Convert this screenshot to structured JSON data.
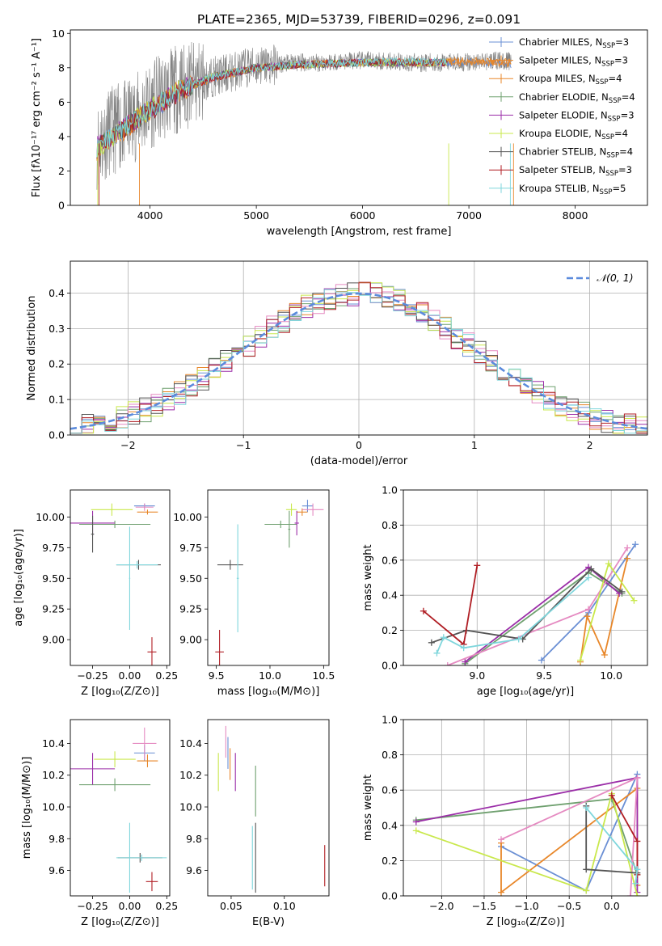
{
  "palette": [
    "#6a8fd4",
    "#e8872a",
    "#6fa06f",
    "#9b2ea8",
    "#e58ac1",
    "#c9e84c",
    "#555555",
    "#b01e24",
    "#7fd6dc"
  ],
  "figure": {
    "title": "PLATE=2365, MJD=53739, FIBERID=0296, z=0.091"
  },
  "chart_data": [
    {
      "id": "spectrum",
      "type": "line",
      "xlabel": "wavelength [Angstrom, rest frame]",
      "ylabel": "Flux [fλ10⁻¹⁷ erg cm⁻² s⁻¹ A⁻¹]",
      "xlim": [
        3250,
        8680
      ],
      "ylim": [
        0,
        10.2
      ],
      "xticks": [
        4000,
        5000,
        6000,
        7000,
        8000
      ],
      "yticks": [
        0,
        2,
        4,
        6,
        8,
        10
      ],
      "legend": "top-right",
      "observed": {
        "color": "#808080",
        "x": [
          3500,
          3600,
          3700,
          3800,
          3900,
          4000,
          4100,
          4200,
          4300,
          4400,
          4500,
          4600,
          4700,
          4800,
          4900,
          5000,
          5200,
          5400,
          5600,
          5800,
          6000,
          6200,
          6400,
          6600,
          6800,
          7000,
          7200,
          7400
        ],
        "y": [
          3.5,
          4.2,
          4.5,
          4.8,
          5.3,
          5.8,
          6.2,
          6.6,
          6.9,
          7.0,
          7.2,
          7.5,
          7.6,
          7.8,
          8.0,
          8.1,
          8.2,
          8.3,
          8.3,
          8.4,
          8.4,
          8.4,
          8.3,
          8.3,
          8.3,
          8.3,
          8.4,
          8.4
        ]
      },
      "series": [
        {
          "name": "Chabrier MILES, N_SSP=3",
          "colorIndex": 0,
          "x": [
            3500,
            3700,
            4000,
            4300,
            4600,
            5000,
            5500,
            6000,
            6500,
            7000,
            7400
          ],
          "y": [
            3.3,
            4.2,
            5.5,
            6.7,
            7.4,
            8.0,
            8.2,
            8.3,
            8.3,
            8.3,
            8.2
          ]
        },
        {
          "name": "Salpeter MILES, N_SSP=3",
          "colorIndex": 1,
          "x": [
            3500,
            3700,
            4000,
            4300,
            4600,
            5000,
            5500,
            6000,
            6500,
            7000,
            7400
          ],
          "y": [
            3.3,
            4.2,
            5.6,
            6.8,
            7.5,
            8.0,
            8.2,
            8.3,
            8.3,
            8.4,
            8.3
          ]
        },
        {
          "name": "Kroupa MILES, N_SSP=4",
          "colorIndex": 1,
          "x": [
            3500,
            3700,
            4000,
            4300,
            4600,
            5000,
            5500,
            6000,
            6500,
            7000,
            7400
          ],
          "y": [
            3.2,
            4.1,
            5.5,
            6.7,
            7.4,
            8.0,
            8.2,
            8.3,
            8.3,
            8.3,
            8.2
          ]
        },
        {
          "name": "Chabrier ELODIE, N_SSP=4",
          "colorIndex": 2,
          "x": [
            3500,
            3700,
            4000,
            4300,
            4600,
            5000,
            5500,
            6000,
            6500,
            6800
          ],
          "y": [
            3.4,
            4.3,
            5.6,
            6.8,
            7.5,
            8.0,
            8.2,
            8.3,
            8.3,
            8.3
          ]
        },
        {
          "name": "Salpeter ELODIE, N_SSP=3",
          "colorIndex": 3,
          "x": [
            3500,
            3700,
            4000,
            4300,
            4600,
            5000,
            5500,
            6000,
            6500,
            6800
          ],
          "y": [
            3.4,
            4.3,
            5.6,
            6.8,
            7.5,
            8.0,
            8.2,
            8.3,
            8.3,
            8.3
          ]
        },
        {
          "name": "Kroupa ELODIE, N_SSP=4",
          "colorIndex": 5,
          "x": [
            3500,
            3700,
            4000,
            4300,
            4600,
            5000,
            5500,
            6000,
            6500,
            6800
          ],
          "y": [
            3.3,
            4.2,
            5.6,
            6.8,
            7.5,
            8.0,
            8.2,
            8.3,
            8.3,
            8.3
          ]
        },
        {
          "name": "Chabrier STELIB, N_SSP=4",
          "colorIndex": 6,
          "x": [
            3500,
            3700,
            4000,
            4300,
            4600,
            5000,
            5500,
            6000,
            6500,
            6800
          ],
          "y": [
            3.3,
            4.3,
            5.5,
            6.7,
            7.5,
            8.0,
            8.2,
            8.3,
            8.3,
            8.3
          ]
        },
        {
          "name": "Salpeter STELIB, N_SSP=3",
          "colorIndex": 7,
          "x": [
            3500,
            3700,
            4000,
            4300,
            4600,
            5000,
            5500,
            6000,
            6500,
            6800
          ],
          "y": [
            3.3,
            4.2,
            5.5,
            6.7,
            7.4,
            8.0,
            8.2,
            8.3,
            8.3,
            8.3
          ]
        },
        {
          "name": "Kroupa STELIB, N_SSP=5",
          "colorIndex": 8,
          "x": [
            3500,
            3700,
            4000,
            4300,
            4600,
            5000,
            5500,
            6000,
            6500,
            6800
          ],
          "y": [
            3.4,
            4.3,
            5.6,
            6.8,
            7.5,
            8.0,
            8.2,
            8.3,
            8.4,
            8.3
          ]
        }
      ],
      "legend_labels": [
        "Chabrier MILES, N",
        "Salpeter MILES, N",
        "Kroupa MILES, N",
        "Chabrier ELODIE, N",
        "Salpeter ELODIE, N",
        "Kroupa ELODIE, N",
        "Chabrier STELIB, N",
        "Salpeter STELIB, N",
        "Kroupa STELIB, N"
      ],
      "legend_sub": "SSP",
      "legend_counts": [
        "=3",
        "=3",
        "=4",
        "=4",
        "=3",
        "=4",
        "=4",
        "=3",
        "=5"
      ],
      "legend_colorIndex": [
        0,
        1,
        1,
        2,
        3,
        5,
        6,
        7,
        8
      ]
    },
    {
      "id": "residuals",
      "type": "line",
      "xlabel": "(data-model)/error",
      "ylabel": "Normed distribution",
      "xlim": [
        -2.5,
        2.5
      ],
      "ylim": [
        0,
        0.49
      ],
      "xticks": [
        -2,
        -1,
        0,
        1,
        2
      ],
      "yticks": [
        0.0,
        0.1,
        0.2,
        0.3,
        0.4
      ],
      "grid": true,
      "legend": "top-right",
      "reference": {
        "name": "𝒩(0, 1)",
        "color": "#5b8bdc",
        "mean": 0,
        "sigma": 1
      }
    },
    {
      "id": "age-vs-Z",
      "type": "scatter",
      "xlabel": "Z [log₁₀(Z/Z⊙)]",
      "ylabel": "age  [log₁₀(age/yr)]",
      "xlim": [
        -0.4,
        0.27
      ],
      "ylim": [
        8.79,
        10.22
      ],
      "xticks": [
        -0.25,
        0.0,
        0.25
      ],
      "yticks": [
        9.0,
        9.25,
        9.5,
        9.75,
        10.0
      ],
      "points": [
        {
          "x": 0.1,
          "y": 10.09,
          "ex": 0.07,
          "ey": 0.02,
          "c": 0
        },
        {
          "x": 0.12,
          "y": 10.04,
          "ex": 0.07,
          "ey": 0.02,
          "c": 1
        },
        {
          "x": -0.1,
          "y": 9.94,
          "ex": 0.24,
          "ey": 0.03,
          "c": 2
        },
        {
          "x": -0.25,
          "y": 9.95,
          "ex": 0.15,
          "ey": 0.1,
          "c": 3
        },
        {
          "x": 0.1,
          "y": 10.08,
          "ex": 0.06,
          "ey": 0.03,
          "c": 4
        },
        {
          "x": -0.12,
          "y": 10.06,
          "ex": 0.14,
          "ey": 0.05,
          "c": 5
        },
        {
          "x": 0.06,
          "y": 9.61,
          "ex": 0.15,
          "ey": 0.04,
          "c": 6
        },
        {
          "x": 0.15,
          "y": 8.9,
          "ex": 0.03,
          "ey": 0.12,
          "c": 7
        },
        {
          "x": 0.05,
          "y": 9.61,
          "ex": 0.14,
          "ey": 0.03,
          "c": 8
        },
        {
          "x": 0.0,
          "y": 9.5,
          "ex": 0.004,
          "ey": 0.42,
          "c": 8
        },
        {
          "x": -0.25,
          "y": 9.86,
          "ex": 0.01,
          "ey": 0.15,
          "c": 6
        }
      ]
    },
    {
      "id": "age-vs-mass",
      "type": "scatter",
      "xlabel": "mass [log₁₀(M/M⊙)]",
      "ylabel": "",
      "xlim": [
        9.42,
        10.55
      ],
      "ylim": [
        8.79,
        10.22
      ],
      "xticks": [
        9.5,
        10.0,
        10.5
      ],
      "yticks": [
        9.0,
        9.25,
        9.5,
        9.75,
        10.0
      ],
      "points": [
        {
          "x": 10.35,
          "y": 10.09,
          "ex": 0.05,
          "ey": 0.05,
          "c": 0
        },
        {
          "x": 10.3,
          "y": 10.04,
          "ex": 0.05,
          "ey": 0.03,
          "c": 1
        },
        {
          "x": 10.1,
          "y": 9.94,
          "ex": 0.15,
          "ey": 0.03,
          "c": 2
        },
        {
          "x": 10.25,
          "y": 9.95,
          "ex": 0.02,
          "ey": 0.1,
          "c": 3
        },
        {
          "x": 10.4,
          "y": 10.06,
          "ex": 0.1,
          "ey": 0.05,
          "c": 4
        },
        {
          "x": 10.2,
          "y": 10.06,
          "ex": 0.05,
          "ey": 0.05,
          "c": 5
        },
        {
          "x": 9.63,
          "y": 9.61,
          "ex": 0.12,
          "ey": 0.04,
          "c": 6
        },
        {
          "x": 9.53,
          "y": 8.9,
          "ex": 0.04,
          "ey": 0.18,
          "c": 7
        },
        {
          "x": 9.7,
          "y": 9.5,
          "ex": 0.01,
          "ey": 0.44,
          "c": 8
        },
        {
          "x": 10.18,
          "y": 9.9,
          "ex": 0.01,
          "ey": 0.15,
          "c": 2
        }
      ]
    },
    {
      "id": "weight-vs-age",
      "type": "line",
      "xlabel": "age  [log₁₀(age/yr)]",
      "ylabel": "mass weight",
      "xlim": [
        8.45,
        10.27
      ],
      "ylim": [
        0,
        1.0
      ],
      "xticks": [
        9.0,
        9.5,
        10.0
      ],
      "yticks": [
        0.0,
        0.2,
        0.4,
        0.6,
        0.8,
        1.0
      ],
      "grid": true,
      "series": [
        {
          "c": 0,
          "x": [
            9.48,
            9.83,
            10.18
          ],
          "y": [
            0.03,
            0.3,
            0.69
          ]
        },
        {
          "c": 1,
          "x": [
            9.77,
            9.82,
            9.95,
            10.12
          ],
          "y": [
            0.02,
            0.28,
            0.06,
            0.61
          ]
        },
        {
          "c": 2,
          "x": [
            8.91,
            9.83,
            10.08
          ],
          "y": [
            0.01,
            0.53,
            0.41
          ]
        },
        {
          "c": 3,
          "x": [
            8.91,
            9.83,
            10.06
          ],
          "y": [
            0.02,
            0.56,
            0.41
          ]
        },
        {
          "c": 4,
          "x": [
            8.78,
            9.83,
            10.12
          ],
          "y": [
            0.0,
            0.32,
            0.67
          ]
        },
        {
          "c": 5,
          "x": [
            9.77,
            9.98,
            10.17
          ],
          "y": [
            0.03,
            0.58,
            0.37
          ]
        },
        {
          "c": 6,
          "x": [
            8.66,
            8.92,
            9.34,
            9.85,
            10.08
          ],
          "y": [
            0.13,
            0.2,
            0.15,
            0.55,
            0.42
          ]
        },
        {
          "c": 7,
          "x": [
            8.6,
            8.9,
            9.0
          ],
          "y": [
            0.31,
            0.12,
            0.57
          ]
        },
        {
          "c": 8,
          "x": [
            8.7,
            8.75,
            8.9,
            9.31,
            9.83
          ],
          "y": [
            0.07,
            0.16,
            0.1,
            0.15,
            0.5
          ]
        }
      ]
    },
    {
      "id": "mass-vs-Z",
      "type": "scatter",
      "xlabel": "Z [log₁₀(Z/Z⊙)]",
      "ylabel": "mass [log₁₀(M/M⊙)]",
      "xlim": [
        -0.4,
        0.27
      ],
      "ylim": [
        9.44,
        10.55
      ],
      "xticks": [
        -0.25,
        0.0,
        0.25
      ],
      "yticks": [
        9.6,
        9.8,
        10.0,
        10.2,
        10.4
      ],
      "points": [
        {
          "x": 0.1,
          "y": 10.34,
          "ex": 0.07,
          "ey": 0.05,
          "c": 0
        },
        {
          "x": 0.12,
          "y": 10.29,
          "ex": 0.07,
          "ey": 0.04,
          "c": 1
        },
        {
          "x": -0.1,
          "y": 10.14,
          "ex": 0.24,
          "ey": 0.04,
          "c": 2
        },
        {
          "x": -0.25,
          "y": 10.24,
          "ex": 0.15,
          "ey": 0.1,
          "c": 3
        },
        {
          "x": 0.1,
          "y": 10.4,
          "ex": 0.08,
          "ey": 0.1,
          "c": 4
        },
        {
          "x": -0.1,
          "y": 10.3,
          "ex": 0.14,
          "ey": 0.05,
          "c": 5
        },
        {
          "x": 0.07,
          "y": 9.68,
          "ex": 0.15,
          "ey": 0.03,
          "c": 6
        },
        {
          "x": 0.15,
          "y": 9.53,
          "ex": 0.04,
          "ey": 0.06,
          "c": 7
        },
        {
          "x": 0.08,
          "y": 9.68,
          "ex": 0.17,
          "ey": 0.02,
          "c": 8
        },
        {
          "x": 0.0,
          "y": 9.68,
          "ex": 0.004,
          "ey": 0.22,
          "c": 8
        }
      ]
    },
    {
      "id": "mass-vs-ebv",
      "type": "scatter",
      "xlabel": "E(B-V)",
      "ylabel": "",
      "xlim": [
        0.028,
        0.142
      ],
      "ylim": [
        9.44,
        10.55
      ],
      "xticks": [
        0.05,
        0.1
      ],
      "yticks": [
        9.6,
        9.8,
        10.0,
        10.2,
        10.4
      ],
      "points": [
        {
          "x": 0.047,
          "y": 10.34,
          "ey": 0.1,
          "c": 0
        },
        {
          "x": 0.049,
          "y": 10.27,
          "ey": 0.1,
          "c": 1
        },
        {
          "x": 0.073,
          "y": 10.1,
          "ey": 0.16,
          "c": 2
        },
        {
          "x": 0.054,
          "y": 10.22,
          "ey": 0.12,
          "c": 3
        },
        {
          "x": 0.045,
          "y": 10.41,
          "ey": 0.1,
          "c": 4
        },
        {
          "x": 0.038,
          "y": 10.22,
          "ey": 0.12,
          "c": 5
        },
        {
          "x": 0.073,
          "y": 9.68,
          "ey": 0.22,
          "c": 6
        },
        {
          "x": 0.138,
          "y": 9.63,
          "ey": 0.13,
          "c": 7
        },
        {
          "x": 0.07,
          "y": 9.68,
          "ey": 0.2,
          "c": 8
        }
      ]
    },
    {
      "id": "weight-vs-Z",
      "type": "line",
      "xlabel": "Z [log₁₀(Z/Z⊙)]",
      "ylabel": "mass weight",
      "xlim": [
        -2.45,
        0.42
      ],
      "ylim": [
        0,
        1.0
      ],
      "xticks": [
        -2.0,
        -1.5,
        -1.0,
        -0.5,
        0.0
      ],
      "yticks": [
        0.0,
        0.2,
        0.4,
        0.6,
        0.8,
        1.0
      ],
      "grid": true,
      "series": [
        {
          "c": 0,
          "x": [
            -1.3,
            -0.3,
            0.3
          ],
          "y": [
            0.28,
            0.03,
            0.69
          ]
        },
        {
          "c": 1,
          "x": [
            -1.3,
            -1.3,
            0.3,
            0.3
          ],
          "y": [
            0.3,
            0.02,
            0.61,
            0.06
          ]
        },
        {
          "c": 2,
          "x": [
            -2.3,
            0.0,
            0.3
          ],
          "y": [
            0.43,
            0.55,
            0.12
          ]
        },
        {
          "c": 3,
          "x": [
            -2.3,
            0.3,
            0.3
          ],
          "y": [
            0.42,
            0.67,
            0.02
          ]
        },
        {
          "c": 4,
          "x": [
            -1.3,
            0.3,
            0.22
          ],
          "y": [
            0.32,
            0.67,
            0.0
          ]
        },
        {
          "c": 5,
          "x": [
            -2.3,
            -0.3,
            0.0,
            0.3
          ],
          "y": [
            0.37,
            0.03,
            0.58,
            0.0
          ]
        },
        {
          "c": 6,
          "x": [
            -0.3,
            -0.3,
            0.3
          ],
          "y": [
            0.51,
            0.15,
            0.13
          ]
        },
        {
          "c": 7,
          "x": [
            0.0,
            0.3,
            0.3
          ],
          "y": [
            0.57,
            0.31,
            0.12
          ]
        },
        {
          "c": 8,
          "x": [
            -0.3,
            0.3,
            0.28
          ],
          "y": [
            0.5,
            0.15,
            0.07
          ]
        }
      ]
    }
  ]
}
